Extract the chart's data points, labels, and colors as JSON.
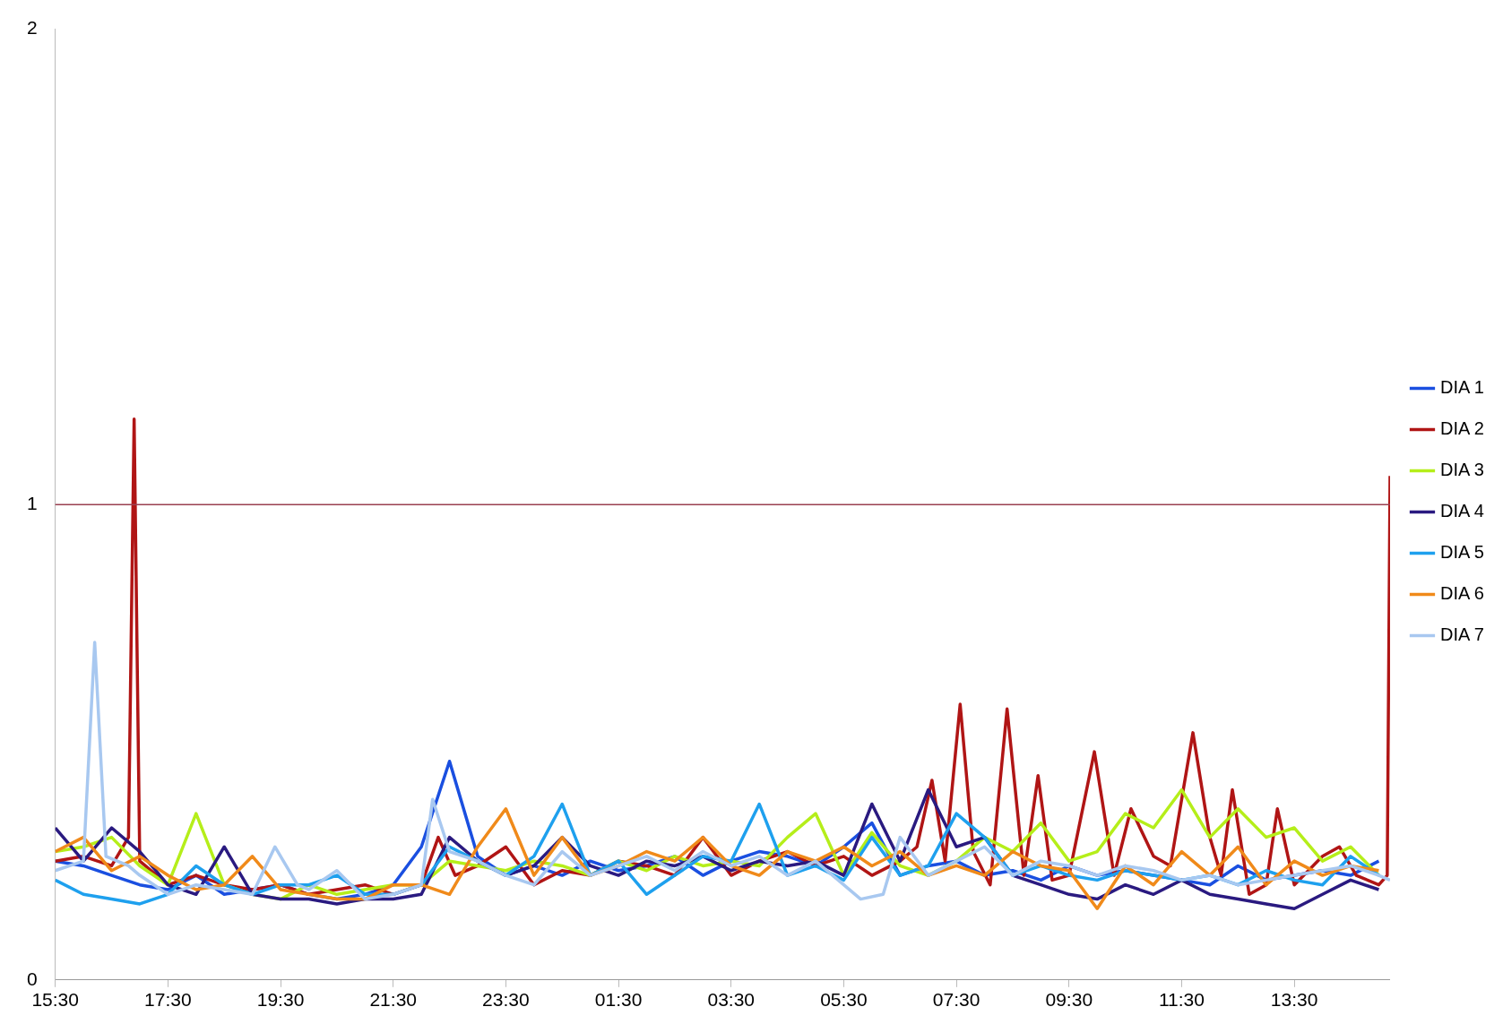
{
  "chart_data": {
    "type": "line",
    "x": [
      "--01-01T15:30",
      "--01-01T16:00",
      "--01-01T16:30",
      "--01-01T17:00",
      "--01-01T17:30",
      "--01-01T18:00",
      "--01-01T18:30",
      "--01-01T19:00",
      "--01-01T19:30",
      "--01-01T20:00",
      "--01-01T20:30",
      "--01-01T21:00",
      "--01-01T21:30",
      "--01-01T22:00",
      "--01-01T22:30",
      "--01-01T23:00",
      "--01-01T23:30",
      "--01-02T00:00",
      "--01-02T00:30",
      "--01-02T01:00",
      "--01-02T01:30",
      "--01-02T02:00",
      "--01-02T02:30",
      "--01-02T03:00",
      "--01-02T03:30",
      "--01-02T04:00",
      "--01-02T04:30",
      "--01-02T05:00",
      "--01-02T05:30",
      "--01-02T06:00",
      "--01-02T06:30",
      "--01-02T07:00",
      "--01-02T07:30",
      "--01-02T08:00",
      "--01-02T08:30",
      "--01-02T09:00",
      "--01-02T09:30",
      "--01-02T10:00",
      "--01-02T10:30",
      "--01-02T11:00",
      "--01-02T11:30",
      "--01-02T12:00",
      "--01-02T12:30",
      "--01-02T13:00",
      "--01-02T13:30",
      "--01-02T14:00",
      "--01-02T14:30",
      "--01-02T15:00"
    ],
    "xlim": [
      "--01-01T15:30",
      "--01-02T15:12"
    ],
    "xticks": [
      {
        "value": "--01-01T15:30",
        "label": "15:30"
      },
      {
        "value": "--01-01T17:30",
        "label": "17:30"
      },
      {
        "value": "--01-01T19:30",
        "label": "19:30"
      },
      {
        "value": "--01-01T21:30",
        "label": "21:30"
      },
      {
        "value": "--01-01T23:30",
        "label": "23:30"
      },
      {
        "value": "--01-02T01:30",
        "label": "01:30"
      },
      {
        "value": "--01-02T03:30",
        "label": "03:30"
      },
      {
        "value": "--01-02T05:30",
        "label": "05:30"
      },
      {
        "value": "--01-02T07:30",
        "label": "07:30"
      },
      {
        "value": "--01-02T09:30",
        "label": "09:30"
      },
      {
        "value": "--01-02T11:30",
        "label": "11:30"
      },
      {
        "value": "--01-02T13:30",
        "label": "13:30"
      }
    ],
    "ylim": [
      0,
      2
    ],
    "yticks": [
      0,
      1,
      2
    ],
    "legend": "right",
    "marker": "none",
    "ref_lines": [
      {
        "axis": "y",
        "value": 1,
        "color": "#9a4050"
      }
    ],
    "series": [
      {
        "name": "DIA 1",
        "color": "#1a4fe0",
        "values": [
          0.25,
          0.24,
          0.22,
          0.2,
          0.19,
          0.22,
          0.18,
          0.19,
          0.2,
          0.18,
          0.17,
          0.18,
          0.2,
          0.28,
          0.46,
          0.26,
          0.22,
          0.24,
          0.22,
          0.25,
          0.23,
          0.24,
          0.26,
          0.22,
          0.25,
          0.27,
          0.26,
          0.24,
          0.28,
          0.33,
          0.22,
          0.24,
          0.25,
          0.22,
          0.23,
          0.21,
          0.24,
          0.22,
          0.23,
          0.22,
          0.21,
          0.2,
          0.24,
          0.21,
          0.22,
          0.23,
          0.22,
          0.25
        ]
      },
      {
        "name": "DIA 2",
        "color": "#b01515",
        "x": [
          "--01-01T15:30",
          "--01-01T16:00",
          "--01-01T16:30",
          "--01-01T16:48",
          "--01-01T16:54",
          "--01-01T17:00",
          "--01-01T17:30",
          "--01-01T18:00",
          "--01-01T18:30",
          "--01-01T19:00",
          "--01-01T19:30",
          "--01-01T20:00",
          "--01-01T20:30",
          "--01-01T21:00",
          "--01-01T21:30",
          "--01-01T22:00",
          "--01-01T22:18",
          "--01-01T22:36",
          "--01-01T23:00",
          "--01-01T23:30",
          "--01-02T00:00",
          "--01-02T00:30",
          "--01-02T01:00",
          "--01-02T01:30",
          "--01-02T02:00",
          "--01-02T02:30",
          "--01-02T03:00",
          "--01-02T03:30",
          "--01-02T04:00",
          "--01-02T04:30",
          "--01-02T05:00",
          "--01-02T05:30",
          "--01-02T06:00",
          "--01-02T06:30",
          "--01-02T06:48",
          "--01-02T07:04",
          "--01-02T07:18",
          "--01-02T07:34",
          "--01-02T07:48",
          "--01-02T08:06",
          "--01-02T08:24",
          "--01-02T08:42",
          "--01-02T08:57",
          "--01-02T09:12",
          "--01-02T09:30",
          "--01-02T09:57",
          "--01-02T10:18",
          "--01-02T10:36",
          "--01-02T11:00",
          "--01-02T11:18",
          "--01-02T11:42",
          "--01-02T12:00",
          "--01-02T12:12",
          "--01-02T12:24",
          "--01-02T12:42",
          "--01-02T13:00",
          "--01-02T13:12",
          "--01-02T13:30",
          "--01-02T14:00",
          "--01-02T14:18",
          "--01-02T14:36",
          "--01-02T15:00",
          "--01-02T15:09",
          "--01-02T15:12"
        ],
        "values": [
          0.25,
          0.26,
          0.24,
          0.3,
          1.18,
          0.25,
          0.2,
          0.22,
          0.2,
          0.19,
          0.2,
          0.18,
          0.19,
          0.2,
          0.18,
          0.2,
          0.3,
          0.22,
          0.24,
          0.28,
          0.2,
          0.23,
          0.22,
          0.25,
          0.24,
          0.22,
          0.3,
          0.22,
          0.25,
          0.27,
          0.24,
          0.26,
          0.22,
          0.25,
          0.28,
          0.42,
          0.25,
          0.58,
          0.27,
          0.2,
          0.57,
          0.22,
          0.43,
          0.21,
          0.22,
          0.48,
          0.22,
          0.36,
          0.26,
          0.24,
          0.52,
          0.3,
          0.22,
          0.4,
          0.18,
          0.2,
          0.36,
          0.2,
          0.26,
          0.28,
          0.22,
          0.2,
          0.22,
          1.06
        ]
      },
      {
        "name": "DIA 3",
        "color": "#b5ee1a",
        "values": [
          0.27,
          0.28,
          0.3,
          0.24,
          0.2,
          0.35,
          0.2,
          0.18,
          0.17,
          0.2,
          0.18,
          0.19,
          0.2,
          0.2,
          0.25,
          0.24,
          0.23,
          0.25,
          0.24,
          0.22,
          0.25,
          0.23,
          0.26,
          0.24,
          0.25,
          0.24,
          0.3,
          0.35,
          0.22,
          0.31,
          0.24,
          0.22,
          0.25,
          0.3,
          0.27,
          0.33,
          0.25,
          0.27,
          0.35,
          0.32,
          0.4,
          0.3,
          0.36,
          0.3,
          0.32,
          0.25,
          0.28,
          0.22
        ]
      },
      {
        "name": "DIA 4",
        "color": "#2a1a80",
        "values": [
          0.32,
          0.25,
          0.32,
          0.27,
          0.2,
          0.18,
          0.28,
          0.18,
          0.17,
          0.17,
          0.16,
          0.17,
          0.17,
          0.18,
          0.3,
          0.25,
          0.22,
          0.24,
          0.3,
          0.24,
          0.22,
          0.25,
          0.24,
          0.26,
          0.23,
          0.25,
          0.24,
          0.25,
          0.22,
          0.37,
          0.25,
          0.4,
          0.28,
          0.3,
          0.22,
          0.2,
          0.18,
          0.17,
          0.2,
          0.18,
          0.21,
          0.18,
          0.17,
          0.16,
          0.15,
          0.18,
          0.21,
          0.19
        ]
      },
      {
        "name": "DIA 5",
        "color": "#1ea0ee",
        "values": [
          0.21,
          0.18,
          0.17,
          0.16,
          0.18,
          0.24,
          0.2,
          0.18,
          0.2,
          0.2,
          0.22,
          0.18,
          0.18,
          0.2,
          0.28,
          0.25,
          0.22,
          0.26,
          0.37,
          0.22,
          0.25,
          0.18,
          0.22,
          0.26,
          0.25,
          0.37,
          0.22,
          0.24,
          0.21,
          0.3,
          0.22,
          0.24,
          0.35,
          0.3,
          0.22,
          0.24,
          0.22,
          0.21,
          0.23,
          0.22,
          0.21,
          0.22,
          0.2,
          0.23,
          0.21,
          0.2,
          0.26,
          0.22
        ]
      },
      {
        "name": "DIA 6",
        "color": "#f08a1a",
        "values": [
          0.27,
          0.3,
          0.23,
          0.26,
          0.22,
          0.19,
          0.2,
          0.26,
          0.19,
          0.18,
          0.17,
          0.17,
          0.2,
          0.2,
          0.18,
          0.28,
          0.36,
          0.22,
          0.3,
          0.22,
          0.24,
          0.27,
          0.25,
          0.3,
          0.24,
          0.22,
          0.27,
          0.25,
          0.28,
          0.24,
          0.27,
          0.22,
          0.24,
          0.22,
          0.27,
          0.24,
          0.23,
          0.15,
          0.24,
          0.2,
          0.27,
          0.22,
          0.28,
          0.2,
          0.25,
          0.22,
          0.24,
          0.23
        ]
      },
      {
        "name": "DIA 7",
        "color": "#a8c8f0",
        "x": [
          "--01-01T15:30",
          "--01-01T16:00",
          "--01-01T16:12",
          "--01-01T16:24",
          "--01-01T16:48",
          "--01-01T17:00",
          "--01-01T17:30",
          "--01-01T18:00",
          "--01-01T18:30",
          "--01-01T19:00",
          "--01-01T19:24",
          "--01-01T19:48",
          "--01-01T20:00",
          "--01-01T20:30",
          "--01-01T21:00",
          "--01-01T21:30",
          "--01-01T22:00",
          "--01-01T22:12",
          "--01-01T22:30",
          "--01-01T23:00",
          "--01-01T23:30",
          "--01-02T00:00",
          "--01-02T00:30",
          "--01-02T01:00",
          "--01-02T01:30",
          "--01-02T02:00",
          "--01-02T02:30",
          "--01-02T03:00",
          "--01-02T03:30",
          "--01-02T04:00",
          "--01-02T04:30",
          "--01-02T05:00",
          "--01-02T05:30",
          "--01-02T05:48",
          "--01-02T06:12",
          "--01-02T06:30",
          "--01-02T07:00",
          "--01-02T07:30",
          "--01-02T08:00",
          "--01-02T08:30",
          "--01-02T09:00",
          "--01-02T09:30",
          "--01-02T10:00",
          "--01-02T10:30",
          "--01-02T11:00",
          "--01-02T11:30",
          "--01-02T12:00",
          "--01-02T12:30",
          "--01-02T13:00",
          "--01-02T13:30",
          "--01-02T14:00",
          "--01-02T14:30",
          "--01-02T15:00",
          "--01-02T15:12"
        ],
        "values": [
          0.23,
          0.25,
          0.71,
          0.26,
          0.24,
          0.22,
          0.18,
          0.2,
          0.19,
          0.18,
          0.28,
          0.2,
          0.19,
          0.23,
          0.17,
          0.18,
          0.2,
          0.38,
          0.27,
          0.25,
          0.22,
          0.2,
          0.27,
          0.22,
          0.24,
          0.26,
          0.23,
          0.27,
          0.24,
          0.26,
          0.22,
          0.25,
          0.2,
          0.17,
          0.18,
          0.3,
          0.22,
          0.25,
          0.28,
          0.22,
          0.25,
          0.24,
          0.22,
          0.24,
          0.23,
          0.21,
          0.22,
          0.2,
          0.21,
          0.22,
          0.23,
          0.24,
          0.22,
          0.21
        ]
      }
    ]
  }
}
